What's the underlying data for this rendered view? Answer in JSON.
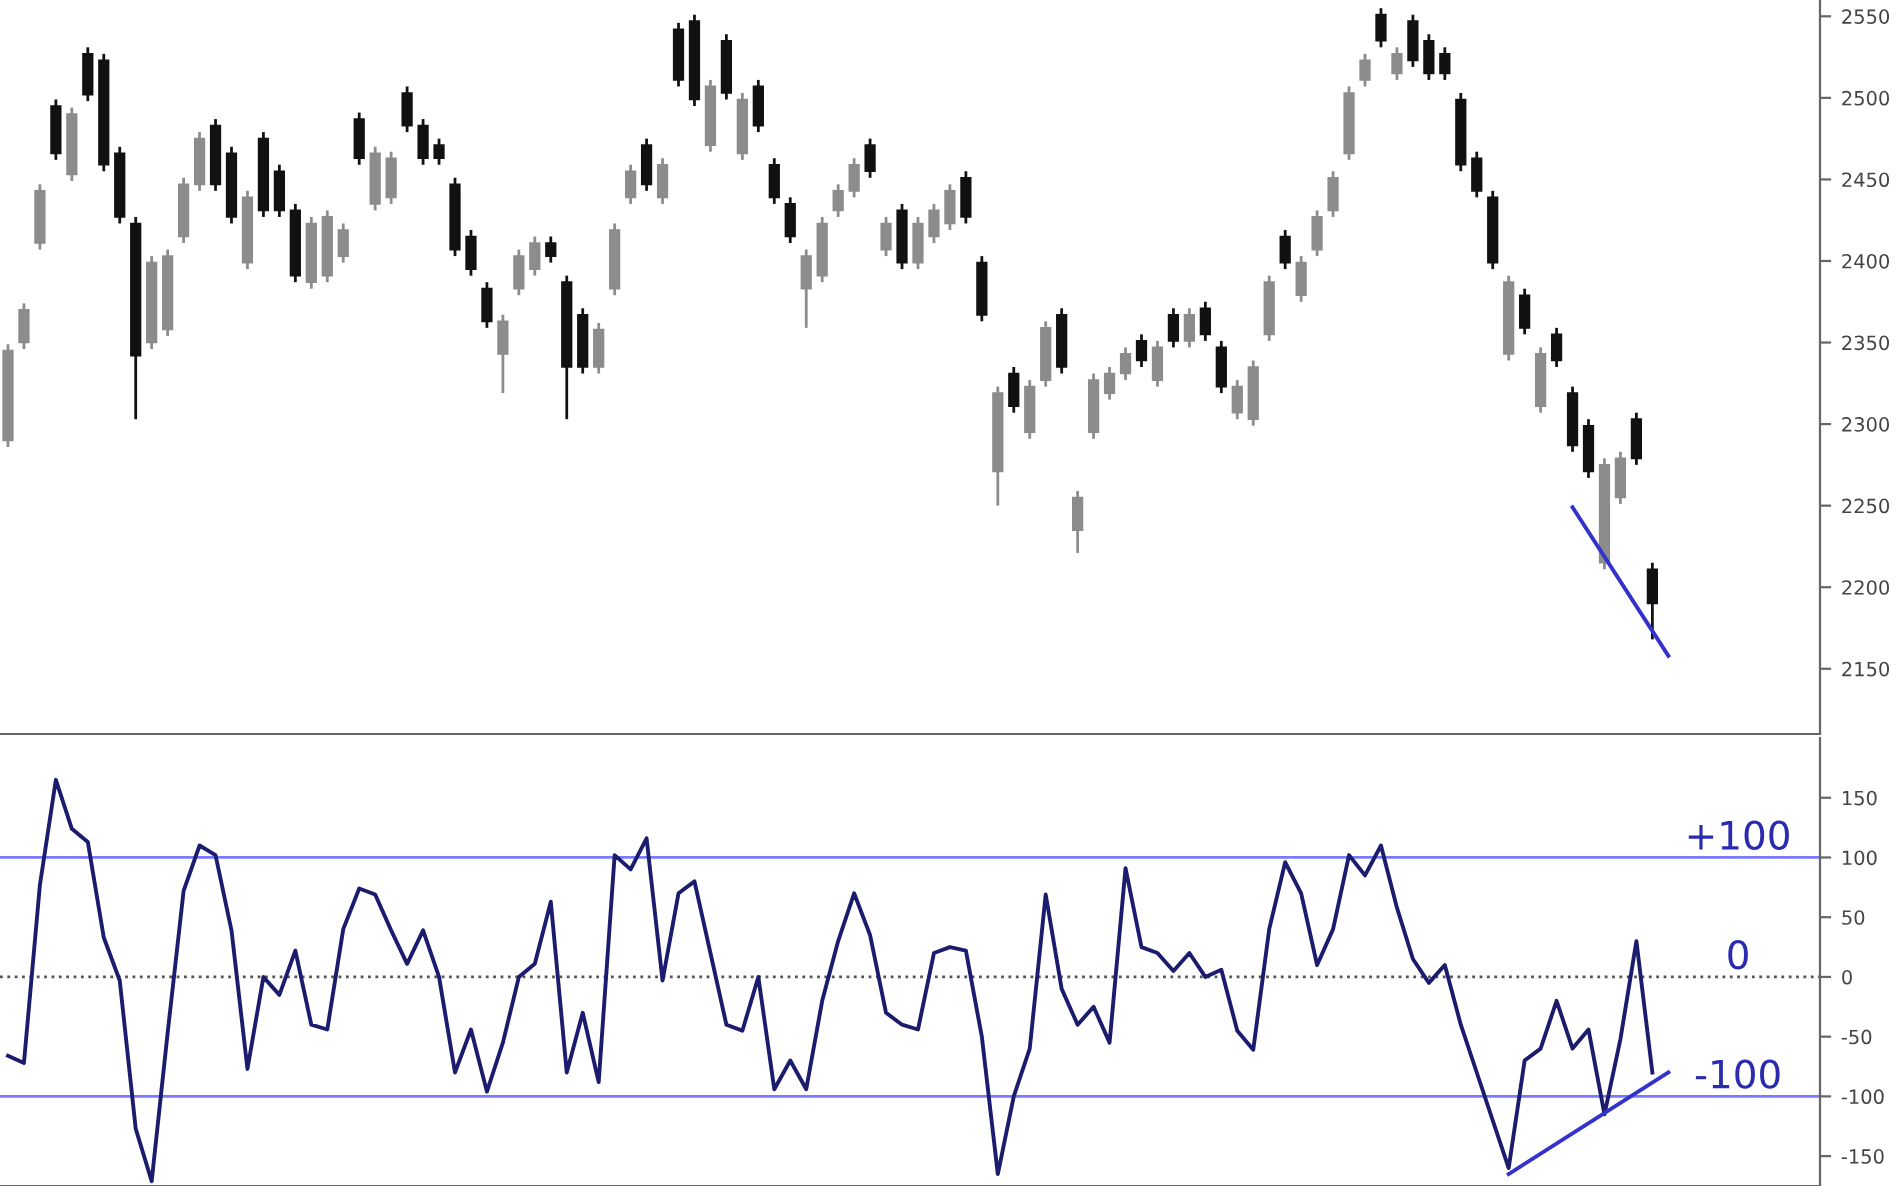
{
  "chart_data": [
    {
      "type": "candlestick",
      "ylim": [
        2110,
        2560
      ],
      "yticks": [
        2150,
        2200,
        2250,
        2300,
        2350,
        2400,
        2450,
        2500,
        2550
      ],
      "tick_labels": "y",
      "categories": [
        null,
        null,
        null,
        null,
        null,
        null,
        null,
        null,
        null,
        null,
        null,
        null,
        null,
        null,
        null,
        null,
        null,
        null,
        null,
        null,
        null,
        null,
        null,
        null,
        null,
        null,
        null,
        null,
        null,
        null,
        null,
        null,
        null,
        null,
        null,
        null,
        null,
        null,
        null,
        null,
        null,
        null,
        null,
        null,
        null,
        null,
        null,
        null,
        null,
        null,
        null,
        null,
        null,
        null,
        null,
        null,
        null,
        null,
        null,
        null,
        null,
        null,
        null,
        null,
        null,
        null,
        null,
        null,
        null,
        null,
        null,
        null,
        null,
        null,
        null,
        null,
        null,
        null,
        null,
        null,
        null,
        null,
        null,
        null,
        null,
        null,
        null,
        null,
        null,
        null,
        null,
        null,
        null,
        null,
        null,
        null,
        null,
        null,
        null,
        null,
        null,
        null,
        null,
        null,
        null,
        null,
        null,
        null,
        null,
        null,
        null,
        null,
        null,
        null
      ],
      "colors": [
        "#8c8c8c",
        "#8c8c8c",
        "#8c8c8c",
        "#111111",
        "#8c8c8c",
        "#111111",
        "#111111",
        "#111111",
        "#111111",
        "#8c8c8c",
        "#8c8c8c",
        "#8c8c8c",
        "#8c8c8c",
        "#111111",
        "#111111",
        "#8c8c8c",
        "#111111",
        "#111111",
        "#111111",
        "#8c8c8c",
        "#8c8c8c",
        "#8c8c8c",
        "#111111",
        "#8c8c8c",
        "#8c8c8c",
        "#111111",
        "#111111",
        "#111111",
        "#111111",
        "#111111",
        "#111111",
        "#8c8c8c",
        "#8c8c8c",
        "#8c8c8c",
        "#111111",
        "#111111",
        "#111111",
        "#8c8c8c",
        "#8c8c8c",
        "#8c8c8c",
        "#111111",
        "#8c8c8c",
        "#111111",
        "#111111",
        "#8c8c8c",
        "#111111",
        "#8c8c8c",
        "#111111",
        "#111111",
        "#111111",
        "#8c8c8c",
        "#8c8c8c",
        "#8c8c8c",
        "#8c8c8c",
        "#111111",
        "#8c8c8c",
        "#111111",
        "#8c8c8c",
        "#8c8c8c",
        "#8c8c8c",
        "#111111",
        "#111111",
        "#8c8c8c",
        "#111111",
        "#8c8c8c",
        "#8c8c8c",
        "#111111",
        "#8c8c8c",
        "#8c8c8c",
        "#8c8c8c",
        "#8c8c8c",
        "#111111",
        "#8c8c8c",
        "#111111",
        "#8c8c8c",
        "#111111",
        "#111111",
        "#8c8c8c",
        "#8c8c8c",
        "#8c8c8c",
        "#111111",
        "#8c8c8c",
        "#8c8c8c",
        "#8c8c8c",
        "#8c8c8c",
        "#8c8c8c",
        "#111111",
        "#8c8c8c",
        "#111111",
        "#111111",
        "#111111",
        "#111111",
        "#111111",
        "#111111",
        "#8c8c8c",
        "#111111",
        "#8c8c8c",
        "#111111",
        "#111111",
        "#111111",
        "#8c8c8c",
        "#8c8c8c",
        "#111111",
        "#111111",
        null,
        null,
        null,
        null,
        null,
        null,
        null,
        null,
        null,
        null
      ],
      "ohlc": [
        [
          2290,
          2349,
          2286,
          2345
        ],
        [
          2350,
          2374,
          2346,
          2370
        ],
        [
          2411,
          2447,
          2407,
          2443
        ],
        [
          2495,
          2499,
          2462,
          2466
        ],
        [
          2453,
          2494,
          2449,
          2490
        ],
        [
          2527,
          2531,
          2498,
          2502
        ],
        [
          2523,
          2527,
          2455,
          2459
        ],
        [
          2466,
          2470,
          2423,
          2427
        ],
        [
          2423,
          2427,
          2303,
          2342
        ],
        [
          2350,
          2403,
          2346,
          2399
        ],
        [
          2358,
          2407,
          2354,
          2403
        ],
        [
          2415,
          2451,
          2411,
          2447
        ],
        [
          2447,
          2479,
          2443,
          2475
        ],
        [
          2483,
          2487,
          2443,
          2447
        ],
        [
          2466,
          2470,
          2423,
          2427
        ],
        [
          2399,
          2443,
          2395,
          2439
        ],
        [
          2475,
          2479,
          2427,
          2431
        ],
        [
          2455,
          2459,
          2427,
          2431
        ],
        [
          2431,
          2435,
          2387,
          2391
        ],
        [
          2387,
          2427,
          2383,
          2423
        ],
        [
          2391,
          2431,
          2387,
          2427
        ],
        [
          2403,
          2423,
          2399,
          2419
        ],
        [
          2487,
          2491,
          2459,
          2463
        ],
        [
          2435,
          2470,
          2431,
          2466
        ],
        [
          2439,
          2467,
          2435,
          2463
        ],
        [
          2503,
          2507,
          2479,
          2483
        ],
        [
          2483,
          2487,
          2459,
          2463
        ],
        [
          2471,
          2475,
          2459,
          2463
        ],
        [
          2447,
          2451,
          2403,
          2407
        ],
        [
          2415,
          2419,
          2391,
          2395
        ],
        [
          2383,
          2387,
          2359,
          2363
        ],
        [
          2343,
          2367,
          2319,
          2363
        ],
        [
          2383,
          2407,
          2379,
          2403
        ],
        [
          2395,
          2415,
          2391,
          2411
        ],
        [
          2411,
          2415,
          2399,
          2403
        ],
        [
          2387,
          2391,
          2303,
          2335
        ],
        [
          2367,
          2371,
          2331,
          2335
        ],
        [
          2335,
          2362,
          2331,
          2358
        ],
        [
          2383,
          2423,
          2379,
          2419
        ],
        [
          2439,
          2459,
          2435,
          2455
        ],
        [
          2471,
          2475,
          2443,
          2447
        ],
        [
          2439,
          2463,
          2435,
          2459
        ],
        [
          2542,
          2546,
          2507,
          2511
        ],
        [
          2547,
          2551,
          2495,
          2499
        ],
        [
          2471,
          2511,
          2467,
          2507
        ],
        [
          2535,
          2539,
          2499,
          2503
        ],
        [
          2466,
          2503,
          2462,
          2499
        ],
        [
          2507,
          2511,
          2479,
          2483
        ],
        [
          2459,
          2463,
          2435,
          2439
        ],
        [
          2435,
          2439,
          2411,
          2415
        ],
        [
          2383,
          2407,
          2359,
          2403
        ],
        [
          2391,
          2427,
          2387,
          2423
        ],
        [
          2431,
          2447,
          2427,
          2443
        ],
        [
          2443,
          2463,
          2439,
          2459
        ],
        [
          2471,
          2475,
          2451,
          2455
        ],
        [
          2407,
          2427,
          2403,
          2423
        ],
        [
          2431,
          2435,
          2395,
          2399
        ],
        [
          2399,
          2427,
          2395,
          2423
        ],
        [
          2415,
          2435,
          2411,
          2431
        ],
        [
          2423,
          2447,
          2419,
          2443
        ],
        [
          2451,
          2455,
          2423,
          2427
        ],
        [
          2399,
          2403,
          2363,
          2367
        ],
        [
          2271,
          2323,
          2250,
          2319
        ],
        [
          2331,
          2335,
          2307,
          2311
        ],
        [
          2295,
          2327,
          2291,
          2323
        ],
        [
          2327,
          2363,
          2323,
          2359
        ],
        [
          2367,
          2371,
          2331,
          2335
        ],
        [
          2235,
          2259,
          2221,
          2255
        ],
        [
          2295,
          2331,
          2291,
          2327
        ],
        [
          2319,
          2335,
          2315,
          2331
        ],
        [
          2331,
          2347,
          2327,
          2343
        ],
        [
          2351,
          2355,
          2335,
          2339
        ],
        [
          2327,
          2351,
          2323,
          2347
        ],
        [
          2367,
          2371,
          2347,
          2351
        ],
        [
          2351,
          2371,
          2347,
          2367
        ],
        [
          2371,
          2375,
          2351,
          2355
        ],
        [
          2347,
          2351,
          2319,
          2323
        ],
        [
          2307,
          2327,
          2303,
          2323
        ],
        [
          2303,
          2339,
          2299,
          2335
        ],
        [
          2355,
          2391,
          2351,
          2387
        ],
        [
          2415,
          2419,
          2395,
          2399
        ],
        [
          2379,
          2403,
          2375,
          2399
        ],
        [
          2407,
          2431,
          2403,
          2427
        ],
        [
          2431,
          2455,
          2427,
          2451
        ],
        [
          2466,
          2507,
          2462,
          2503
        ],
        [
          2511,
          2527,
          2507,
          2523
        ],
        [
          2551,
          2555,
          2531,
          2535
        ],
        [
          2515,
          2531,
          2511,
          2527
        ],
        [
          2547,
          2551,
          2519,
          2523
        ],
        [
          2535,
          2539,
          2511,
          2515
        ],
        [
          2527,
          2531,
          2511,
          2515
        ],
        [
          2499,
          2503,
          2455,
          2459
        ],
        [
          2463,
          2467,
          2439,
          2443
        ],
        [
          2439,
          2443,
          2395,
          2399
        ],
        [
          2343,
          2391,
          2339,
          2387
        ],
        [
          2379,
          2383,
          2355,
          2359
        ],
        [
          2311,
          2347,
          2307,
          2343
        ],
        [
          2355,
          2359,
          2335,
          2339
        ],
        [
          2319,
          2323,
          2283,
          2287
        ],
        [
          2299,
          2303,
          2267,
          2271
        ],
        [
          2215,
          2279,
          2211,
          2275
        ],
        [
          2255,
          2283,
          2251,
          2279
        ],
        [
          2303,
          2307,
          2275,
          2279
        ],
        [
          2211,
          2215,
          2168,
          2190
        ],
        null,
        null,
        null,
        null,
        null,
        null,
        null,
        null,
        null,
        null
      ],
      "series": [
        {
          "type": "line",
          "color": "#3333cc",
          "values": [
            null,
            null,
            null,
            null,
            null,
            null,
            null,
            null,
            null,
            null,
            null,
            null,
            null,
            null,
            null,
            null,
            null,
            null,
            null,
            null,
            null,
            null,
            null,
            null,
            null,
            null,
            null,
            null,
            null,
            null,
            null,
            null,
            null,
            null,
            null,
            null,
            null,
            null,
            null,
            null,
            null,
            null,
            null,
            null,
            null,
            null,
            null,
            null,
            null,
            null,
            null,
            null,
            null,
            null,
            null,
            null,
            null,
            null,
            null,
            null,
            null,
            null,
            null,
            null,
            null,
            null,
            null,
            null,
            null,
            null,
            null,
            null,
            null,
            null,
            null,
            null,
            null,
            null,
            null,
            null,
            null,
            null,
            null,
            null,
            null,
            null,
            null,
            null,
            null,
            null,
            null,
            null,
            null,
            null,
            null,
            null,
            null,
            null,
            2249,
            null,
            null,
            null,
            null,
            null,
            2158,
            null,
            null,
            null,
            null,
            null,
            null,
            null,
            null,
            null
          ]
        }
      ]
    },
    {
      "type": "line",
      "ylim": [
        -175,
        200
      ],
      "yticks": [
        -150,
        -100,
        -50,
        0,
        50,
        100,
        150
      ],
      "tick_labels": "y",
      "categories": [
        null,
        null,
        null,
        null,
        null,
        null,
        null,
        null,
        null,
        null,
        null,
        null,
        null,
        null,
        null,
        null,
        null,
        null,
        null,
        null,
        null,
        null,
        null,
        null,
        null,
        null,
        null,
        null,
        null,
        null,
        null,
        null,
        null,
        null,
        null,
        null,
        null,
        null,
        null,
        null,
        null,
        null,
        null,
        null,
        null,
        null,
        null,
        null,
        null,
        null,
        null,
        null,
        null,
        null,
        null,
        null,
        null,
        null,
        null,
        null,
        null,
        null,
        null,
        null,
        null,
        null,
        null,
        null,
        null,
        null,
        null,
        null,
        null,
        null,
        null,
        null,
        null,
        null,
        null,
        null,
        null,
        null,
        null,
        null,
        null,
        null,
        null,
        null,
        null,
        null,
        null,
        null,
        null,
        null,
        null,
        null,
        null,
        null,
        null,
        null,
        null,
        null,
        null,
        null,
        null,
        null,
        null,
        null,
        null,
        null,
        null,
        null,
        null,
        null
      ],
      "series": [
        {
          "color": "#1c1c6e",
          "values": [
            -66,
            -72,
            77,
            165,
            124,
            113,
            33,
            -3,
            -127,
            -171,
            -47,
            72,
            110,
            102,
            39,
            -77,
            0,
            -15,
            22,
            -40,
            -44,
            40,
            74,
            69,
            39,
            11,
            39,
            0,
            -80,
            -44,
            -96,
            -55,
            0,
            11,
            63,
            -80,
            -30,
            -88,
            102,
            90,
            116,
            -3,
            70,
            80,
            20,
            -40,
            -45,
            0,
            -94,
            -70,
            -94,
            -20,
            30,
            70,
            35,
            -30,
            -40,
            -44,
            20,
            25,
            22,
            -50,
            -165,
            -100,
            -60,
            69,
            -10,
            -40,
            -25,
            -55,
            91,
            25,
            20,
            5,
            20,
            0,
            6,
            -45,
            -61,
            40,
            96,
            70,
            10,
            40,
            102,
            85,
            110,
            58,
            15,
            -5,
            10,
            -40,
            -80,
            -120,
            -160,
            -70,
            -60,
            -20,
            -60,
            -44,
            -115,
            -52,
            30,
            -80,
            null,
            null,
            null,
            null,
            null,
            null,
            null,
            null,
            null,
            null
          ]
        },
        {
          "color": "#3333cc",
          "values": [
            null,
            null,
            null,
            null,
            null,
            null,
            null,
            null,
            null,
            null,
            null,
            null,
            null,
            null,
            null,
            null,
            null,
            null,
            null,
            null,
            null,
            null,
            null,
            null,
            null,
            null,
            null,
            null,
            null,
            null,
            null,
            null,
            null,
            null,
            null,
            null,
            null,
            null,
            null,
            null,
            null,
            null,
            null,
            null,
            null,
            null,
            null,
            null,
            null,
            null,
            null,
            null,
            null,
            null,
            null,
            null,
            null,
            null,
            null,
            null,
            null,
            null,
            null,
            null,
            null,
            null,
            null,
            null,
            null,
            null,
            null,
            null,
            null,
            null,
            null,
            null,
            null,
            null,
            null,
            null,
            null,
            null,
            null,
            null,
            null,
            null,
            null,
            null,
            null,
            null,
            null,
            null,
            null,
            null,
            -165,
            null,
            null,
            null,
            null,
            null,
            null,
            null,
            null,
            null,
            -80,
            null,
            null,
            null,
            null,
            null,
            null,
            null,
            null,
            null
          ]
        }
      ],
      "ref_lines": [
        {
          "axis": "y",
          "value": 100,
          "label": "+100",
          "color": "#7a7aff",
          "line_style": "solid"
        },
        {
          "axis": "y",
          "value": 0,
          "label": "0",
          "color": "#555555",
          "line_style": "dotted"
        },
        {
          "axis": "y",
          "value": -100,
          "label": "-100",
          "color": "#7a7aff",
          "line_style": "solid"
        }
      ]
    }
  ]
}
